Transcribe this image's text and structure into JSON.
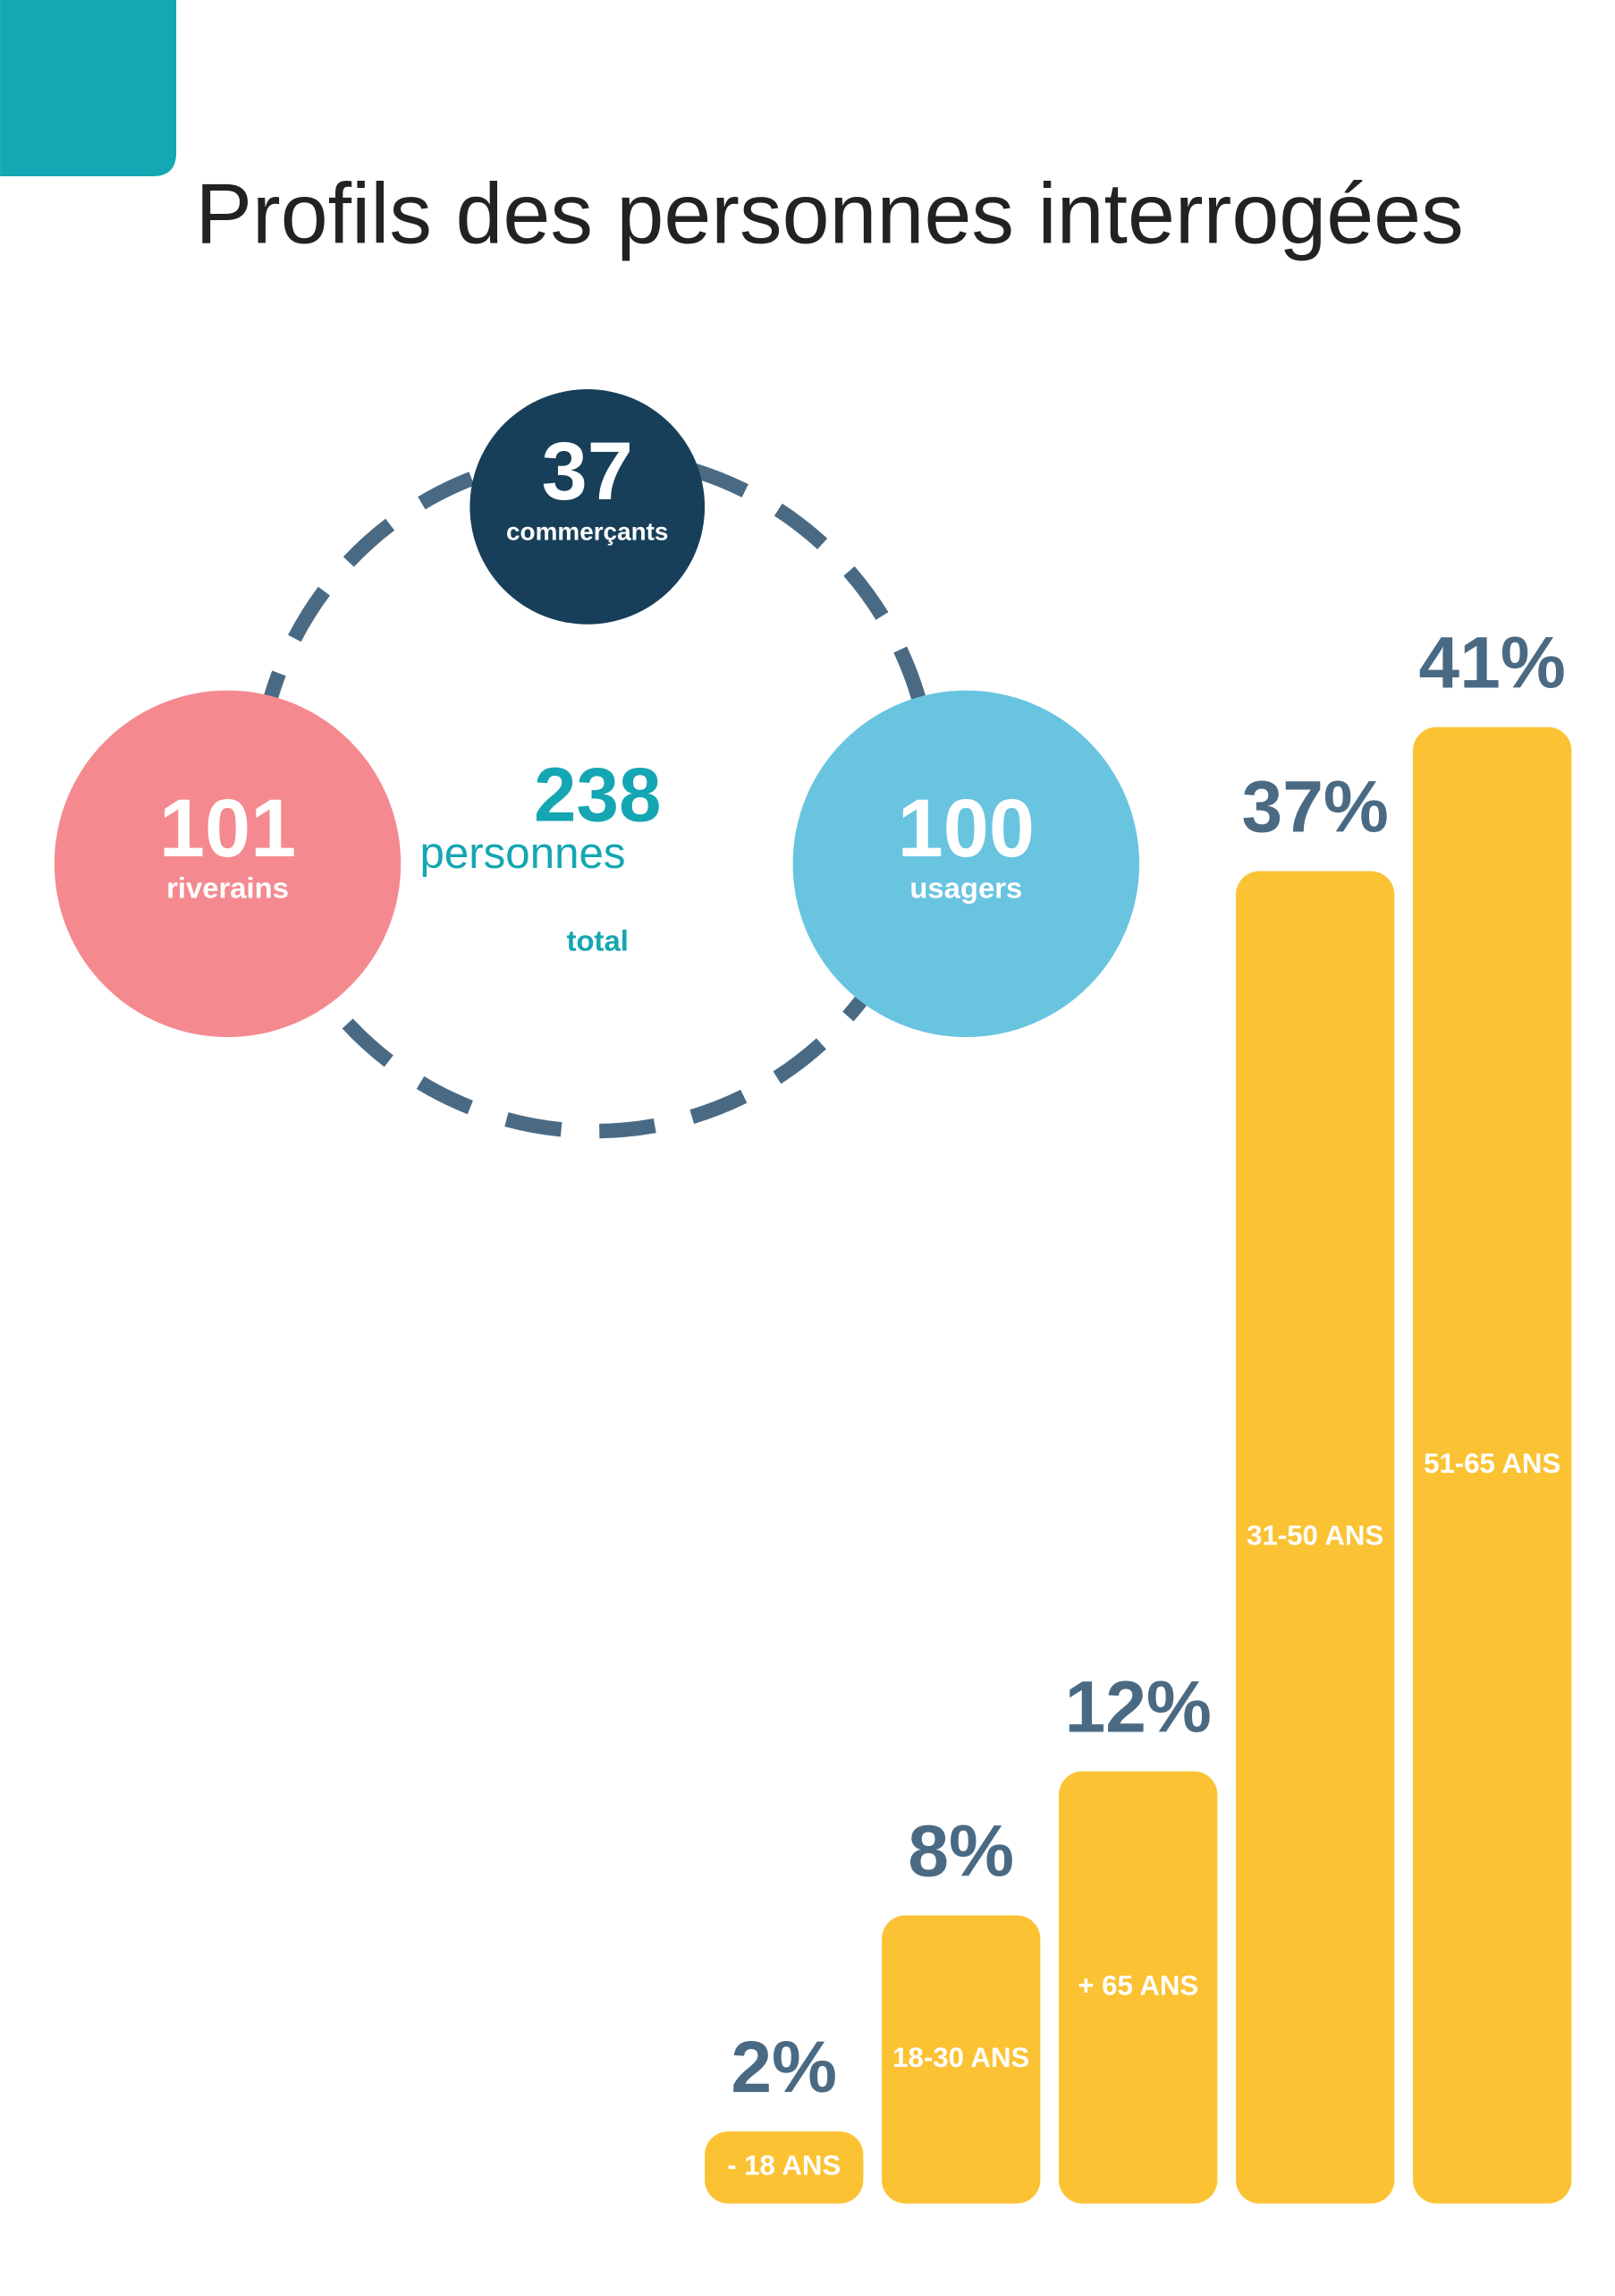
{
  "title": "Profils des personnes interrogées",
  "total": {
    "value": 238,
    "unit": "personnes",
    "label": "total"
  },
  "groups": [
    {
      "value": 37,
      "label": "commerçants",
      "color": "#173f5a"
    },
    {
      "value": 101,
      "label": "riverains",
      "color": "#f48a90"
    },
    {
      "value": 100,
      "label": "usagers",
      "color": "#69c4e0"
    }
  ],
  "chart_data": {
    "type": "bar",
    "categories": [
      "- 18 ANS",
      "18-30 ANS",
      "+ 65 ANS",
      "31-50 ANS",
      "51-65 ANS"
    ],
    "values": [
      2,
      8,
      12,
      37,
      41
    ],
    "value_labels": [
      "2%",
      "8%",
      "12%",
      "37%",
      "41%"
    ],
    "color": "#fbc233"
  }
}
